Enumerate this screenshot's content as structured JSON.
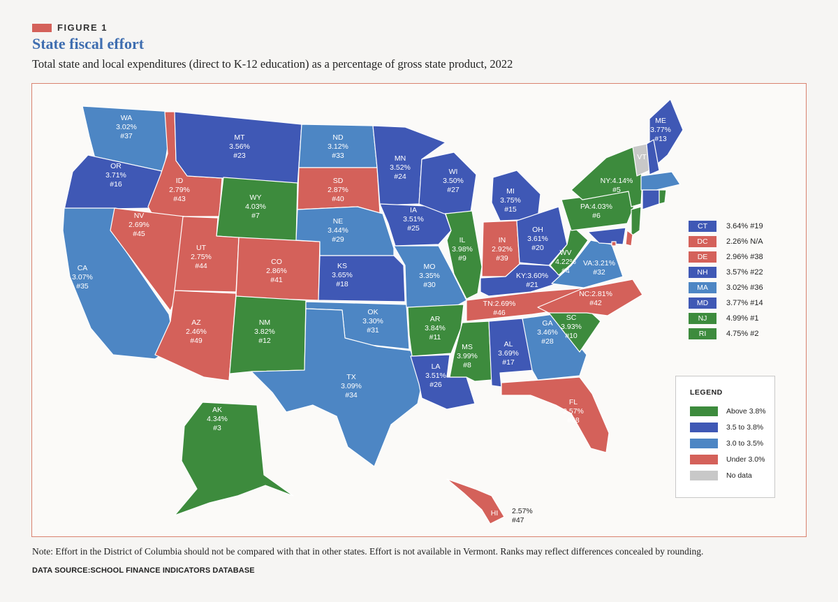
{
  "figure": {
    "tag": "FIGURE 1",
    "title": "State fiscal effort",
    "subtitle": "Total state and local expenditures (direct to K-12 education) as a percentage of gross state product, 2022"
  },
  "colors": {
    "above": "#3d8b3d",
    "mid_high": "#3f58b5",
    "mid_low": "#4d86c4",
    "under": "#d4615a",
    "none": "#c8c8c8",
    "accent": "#d4615a",
    "title": "#3f6eb0"
  },
  "legend": {
    "title": "LEGEND",
    "items": [
      {
        "label": "Above 3.8%",
        "category": "above"
      },
      {
        "label": "3.5 to 3.8%",
        "category": "mid_high"
      },
      {
        "label": "3.0 to 3.5%",
        "category": "mid_low"
      },
      {
        "label": "Under 3.0%",
        "category": "under"
      },
      {
        "label": "No data",
        "category": "none"
      }
    ]
  },
  "small_states": [
    {
      "abbr": "CT",
      "value": "3.64% #19",
      "category": "mid_high"
    },
    {
      "abbr": "DC",
      "value": "2.26% N/A",
      "category": "under"
    },
    {
      "abbr": "DE",
      "value": "2.96% #38",
      "category": "under"
    },
    {
      "abbr": "NH",
      "value": "3.57% #22",
      "category": "mid_high"
    },
    {
      "abbr": "MA",
      "value": "3.02% #36",
      "category": "mid_low"
    },
    {
      "abbr": "MD",
      "value": "3.77% #14",
      "category": "mid_high"
    },
    {
      "abbr": "NJ",
      "value": "4.99% #1",
      "category": "above"
    },
    {
      "abbr": "RI",
      "value": "4.75% #2",
      "category": "above"
    }
  ],
  "states": {
    "WA": {
      "abbr": "WA",
      "pct": "3.02%",
      "rank": "#37",
      "category": "mid_low"
    },
    "OR": {
      "abbr": "OR",
      "pct": "3.71%",
      "rank": "#16",
      "category": "mid_high"
    },
    "CA": {
      "abbr": "CA",
      "pct": "3.07%",
      "rank": "#35",
      "category": "mid_low"
    },
    "ID": {
      "abbr": "ID",
      "pct": "2.79%",
      "rank": "#43",
      "category": "under"
    },
    "NV": {
      "abbr": "NV",
      "pct": "2.69%",
      "rank": "#45",
      "category": "under"
    },
    "MT": {
      "abbr": "MT",
      "pct": "3.56%",
      "rank": "#23",
      "category": "mid_high"
    },
    "WY": {
      "abbr": "WY",
      "pct": "4.03%",
      "rank": "#7",
      "category": "above"
    },
    "UT": {
      "abbr": "UT",
      "pct": "2.75%",
      "rank": "#44",
      "category": "under"
    },
    "AZ": {
      "abbr": "AZ",
      "pct": "2.46%",
      "rank": "#49",
      "category": "under"
    },
    "CO": {
      "abbr": "CO",
      "pct": "2.86%",
      "rank": "#41",
      "category": "under"
    },
    "NM": {
      "abbr": "NM",
      "pct": "3.82%",
      "rank": "#12",
      "category": "above"
    },
    "ND": {
      "abbr": "ND",
      "pct": "3.12%",
      "rank": "#33",
      "category": "mid_low"
    },
    "SD": {
      "abbr": "SD",
      "pct": "2.87%",
      "rank": "#40",
      "category": "under"
    },
    "NE": {
      "abbr": "NE",
      "pct": "3.44%",
      "rank": "#29",
      "category": "mid_low"
    },
    "KS": {
      "abbr": "KS",
      "pct": "3.65%",
      "rank": "#18",
      "category": "mid_high"
    },
    "OK": {
      "abbr": "OK",
      "pct": "3.30%",
      "rank": "#31",
      "category": "mid_low"
    },
    "TX": {
      "abbr": "TX",
      "pct": "3.09%",
      "rank": "#34",
      "category": "mid_low"
    },
    "MN": {
      "abbr": "MN",
      "pct": "3.52%",
      "rank": "#24",
      "category": "mid_high"
    },
    "IA": {
      "abbr": "IA",
      "pct": "3.51%",
      "rank": "#25",
      "category": "mid_high"
    },
    "MO": {
      "abbr": "MO",
      "pct": "3.35%",
      "rank": "#30",
      "category": "mid_low"
    },
    "AR": {
      "abbr": "AR",
      "pct": "3.84%",
      "rank": "#11",
      "category": "above"
    },
    "LA": {
      "abbr": "LA",
      "pct": "3.51%",
      "rank": "#26",
      "category": "mid_high"
    },
    "WI": {
      "abbr": "WI",
      "pct": "3.50%",
      "rank": "#27",
      "category": "mid_high"
    },
    "IL": {
      "abbr": "IL",
      "pct": "3.98%",
      "rank": "#9",
      "category": "above"
    },
    "MI": {
      "abbr": "MI",
      "pct": "3.75%",
      "rank": "#15",
      "category": "mid_high"
    },
    "IN": {
      "abbr": "IN",
      "pct": "2.92%",
      "rank": "#39",
      "category": "under"
    },
    "OH": {
      "abbr": "OH",
      "pct": "3.61%",
      "rank": "#20",
      "category": "mid_high"
    },
    "KY": {
      "text": "KY:3.60%",
      "rank": "#21",
      "category": "mid_high"
    },
    "TN": {
      "text": "TN:2.69%",
      "rank": "#46",
      "category": "under"
    },
    "MS": {
      "abbr": "MS",
      "pct": "3.99%",
      "rank": "#8",
      "category": "above"
    },
    "AL": {
      "abbr": "AL",
      "pct": "3.69%",
      "rank": "#17",
      "category": "mid_high"
    },
    "GA": {
      "abbr": "GA",
      "pct": "3.46%",
      "rank": "#28",
      "category": "mid_low"
    },
    "FL": {
      "abbr": "FL",
      "pct": "2.57%",
      "rank": "#48",
      "category": "under"
    },
    "SC": {
      "abbr": "SC",
      "pct": "3.93%",
      "rank": "#10",
      "category": "above"
    },
    "NC": {
      "text": "NC:2.81%",
      "rank": "#42",
      "category": "under"
    },
    "VA": {
      "text": "VA:3.21%",
      "rank": "#32",
      "category": "mid_low"
    },
    "WV": {
      "abbr": "WV",
      "pct": "4.22%",
      "rank": "#4",
      "category": "above"
    },
    "PA": {
      "text": "PA:4.03%",
      "rank": "#6",
      "category": "above"
    },
    "NY": {
      "text": "NY:4.14%",
      "rank": "#5",
      "category": "above"
    },
    "ME": {
      "abbr": "ME",
      "pct": "3.77%",
      "rank": "#13",
      "category": "mid_high"
    },
    "VT": {
      "abbr": "VT",
      "category": "none"
    },
    "AK": {
      "abbr": "AK",
      "pct": "4.34%",
      "rank": "#3",
      "category": "above"
    },
    "HI": {
      "abbr": "HI",
      "pct": "2.57%",
      "rank": "#47",
      "category": "under"
    }
  },
  "note": "Note: Effort in the District of Columbia should not be compared with that in other states. Effort is not available in Vermont. Ranks may reflect differences concealed by rounding.",
  "source": "DATA SOURCE:SCHOOL FINANCE INDICATORS DATABASE"
}
